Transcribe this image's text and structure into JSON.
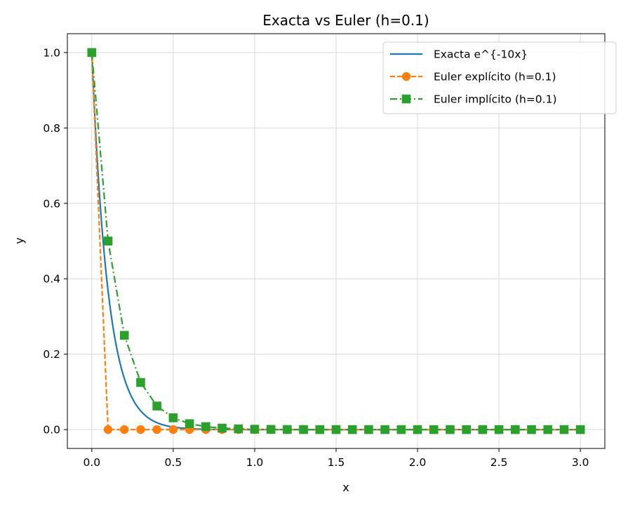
{
  "chart_data": {
    "type": "line",
    "title": "Exacta vs Euler (h=0.1)",
    "xlabel": "x",
    "ylabel": "y",
    "xlim": [
      -0.15,
      3.15
    ],
    "ylim": [
      -0.05,
      1.05
    ],
    "xticks": [
      "0.0",
      "0.5",
      "1.0",
      "1.5",
      "2.0",
      "2.5",
      "3.0"
    ],
    "yticks": [
      "0.0",
      "0.2",
      "0.4",
      "0.6",
      "0.8",
      "1.0"
    ],
    "grid": true,
    "legend_position": "top-right",
    "series": [
      {
        "name": "Exacta e^{-10x}",
        "color": "#1f77b4",
        "style": "solid",
        "marker": "none",
        "function": "exp(-10x)",
        "x_range": [
          0,
          3
        ]
      },
      {
        "name": "Euler explícito (h=0.1)",
        "color": "#ff7f0e",
        "style": "dashed",
        "marker": "circle",
        "x": [
          0.0,
          0.1,
          0.2,
          0.3,
          0.4,
          0.5,
          0.6,
          0.7,
          0.8,
          0.9,
          1.0,
          1.1,
          1.2,
          1.3,
          1.4,
          1.5,
          1.6,
          1.7,
          1.8,
          1.9,
          2.0,
          2.1,
          2.2,
          2.3,
          2.4,
          2.5,
          2.6,
          2.7,
          2.8,
          2.9,
          3.0
        ],
        "y": [
          1.0,
          0,
          0,
          0,
          0,
          0,
          0,
          0,
          0,
          0,
          0,
          0,
          0,
          0,
          0,
          0,
          0,
          0,
          0,
          0,
          0,
          0,
          0,
          0,
          0,
          0,
          0,
          0,
          0,
          0,
          0
        ]
      },
      {
        "name": "Euler implícito (h=0.1)",
        "color": "#2ca02c",
        "style": "dashdot",
        "marker": "square",
        "x": [
          0.0,
          0.1,
          0.2,
          0.3,
          0.4,
          0.5,
          0.6,
          0.7,
          0.8,
          0.9,
          1.0,
          1.1,
          1.2,
          1.3,
          1.4,
          1.5,
          1.6,
          1.7,
          1.8,
          1.9,
          2.0,
          2.1,
          2.2,
          2.3,
          2.4,
          2.5,
          2.6,
          2.7,
          2.8,
          2.9,
          3.0
        ],
        "y": [
          1.0,
          0.5,
          0.25,
          0.125,
          0.0625,
          0.03125,
          0.015625,
          0.0078125,
          0.00390625,
          0.001953,
          0.000977,
          0.000488,
          0.000244,
          0.000122,
          6.1e-05,
          3.1e-05,
          1.5e-05,
          7.6e-06,
          3.8e-06,
          1.9e-06,
          9.5e-07,
          4.8e-07,
          2.4e-07,
          1.2e-07,
          6e-08,
          3e-08,
          1.5e-08,
          7.5e-09,
          3.7e-09,
          1.9e-09,
          9.3e-10
        ]
      }
    ]
  }
}
